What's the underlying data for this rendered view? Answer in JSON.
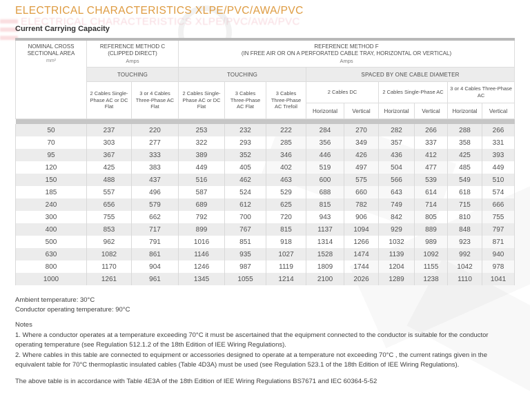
{
  "page": {
    "title": "ELECTRICAL CHARACTERISTICS XLPE/PVC/AWA/PVC",
    "subtitle": "Current Carrying Capacity",
    "accent_color": "#DE9B41",
    "row_stripe_color": "#ECECEC",
    "separator_color": "#C6C6C6"
  },
  "table": {
    "col1": {
      "line1": "NOMINAL CROSS",
      "line2": "SECTIONAL AREA",
      "unit": "mm²"
    },
    "method_c": {
      "title": "REFERENCE METHOD C",
      "subtitle": "(CLIPPED DIRECT)",
      "unit": "Amps",
      "group": "TOUCHING",
      "columns": [
        "2 Cables Single-Phase AC or DC Flat",
        "3 or 4 Cables Three-Phase AC Flat"
      ]
    },
    "method_f": {
      "title": "REFERENCE METHOD F",
      "subtitle": "(IN FREE AIR OR ON A PERFORATED CABLE TRAY, HORIZONTAL OR VERTICAL)",
      "unit": "Amps",
      "touching_group": "TOUCHING",
      "touching_columns": [
        "2 Cables Single-Phase AC or DC Flat",
        "3 Cables Three-Phase AC Flat",
        "3 Cables Three-Phase AC Trefoil"
      ],
      "spaced_group": "SPACED BY ONE CABLE DIAMETER",
      "spaced": [
        {
          "label": "2 Cables DC",
          "columns": [
            "Horizontal",
            "Vertical"
          ]
        },
        {
          "label": "2 Cables Single-Phase AC",
          "columns": [
            "Horizontal",
            "Vertical"
          ]
        },
        {
          "label": "3 or 4 Cables Three-Phase AC",
          "columns": [
            "Horizontal",
            "Vertical"
          ]
        }
      ]
    },
    "rows": [
      [
        50,
        237,
        220,
        253,
        232,
        222,
        284,
        270,
        282,
        266,
        288,
        266
      ],
      [
        70,
        303,
        277,
        322,
        293,
        285,
        356,
        349,
        357,
        337,
        358,
        331
      ],
      [
        95,
        367,
        333,
        389,
        352,
        346,
        446,
        426,
        436,
        412,
        425,
        393
      ],
      [
        120,
        425,
        383,
        449,
        405,
        402,
        519,
        497,
        504,
        477,
        485,
        449
      ],
      [
        150,
        488,
        437,
        516,
        462,
        463,
        600,
        575,
        566,
        539,
        549,
        510
      ],
      [
        185,
        557,
        496,
        587,
        524,
        529,
        688,
        660,
        643,
        614,
        618,
        574
      ],
      [
        240,
        656,
        579,
        689,
        612,
        625,
        815,
        782,
        749,
        714,
        715,
        666
      ],
      [
        300,
        755,
        662,
        792,
        700,
        720,
        943,
        906,
        842,
        805,
        810,
        755
      ],
      [
        400,
        853,
        717,
        899,
        767,
        815,
        1137,
        1094,
        929,
        889,
        848,
        797
      ],
      [
        500,
        962,
        791,
        1016,
        851,
        918,
        1314,
        1266,
        1032,
        989,
        923,
        871
      ],
      [
        630,
        1082,
        861,
        1146,
        935,
        1027,
        1528,
        1474,
        1139,
        1092,
        992,
        940
      ],
      [
        800,
        1170,
        904,
        1246,
        987,
        1119,
        1809,
        1744,
        1204,
        1155,
        1042,
        978
      ],
      [
        1000,
        1261,
        961,
        1345,
        1055,
        1214,
        2100,
        2026,
        1289,
        1238,
        1110,
        1041
      ]
    ]
  },
  "footer": {
    "ambient": "Ambient temperature: 30°C",
    "conductor": "Conductor operating temperature: 90°C",
    "notes_title": "Notes",
    "note1": "1.  Where a conductor operates at a temperature exceeding 70°C it must be ascertained that the equipment connected to the conductor is suitable for the conductor operating temperature (see Regulation 512.1.2 of the 18th Edition of IEE Wiring Regulations).",
    "note2": "2.  Where cables in this table are connected to equipment or accessories designed to operate at a temperature not exceeding 70°C , the current ratings given in the equivalent table for 70°C thermoplastic insulated cables (Table 4D3A) must be used (see Regulation 523.1 of the 18th Edition of IEE Wiring Regulations).",
    "accordance": "The above table is in accordance with Table 4E3A of the 18th Edition of IEE Wiring Regulations BS7671 and IEC 60364-5-52"
  }
}
